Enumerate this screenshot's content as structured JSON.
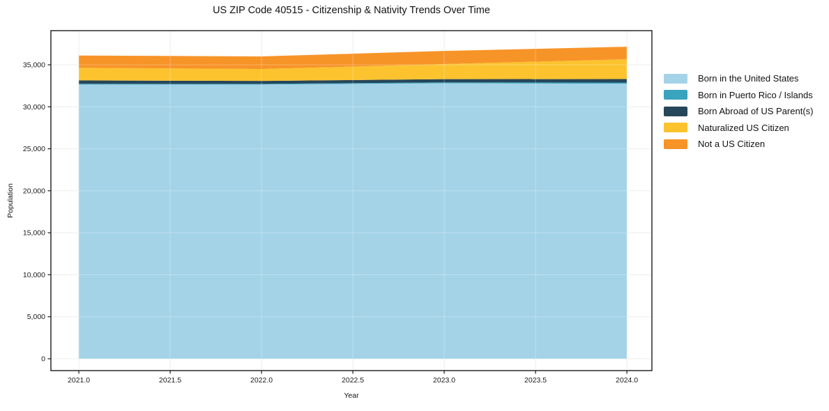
{
  "chart_data": {
    "type": "area",
    "stacked": true,
    "title": "US ZIP Code 40515 - Citizenship & Nativity Trends Over Time",
    "xlabel": "Year",
    "ylabel": "Population",
    "x": [
      2021,
      2022,
      2023,
      2024
    ],
    "series": [
      {
        "name": "Born in the United States",
        "color": "#A4D3E8",
        "values": [
          32650,
          32650,
          32800,
          32750
        ]
      },
      {
        "name": "Born in Puerto Rico / Islands",
        "color": "#3AA3BE",
        "values": [
          90,
          80,
          110,
          130
        ]
      },
      {
        "name": "Born Abroad of US Parent(s)",
        "color": "#26465A",
        "values": [
          400,
          350,
          380,
          420
        ]
      },
      {
        "name": "Naturalized US Citizen",
        "color": "#FCC32F",
        "values": [
          1500,
          1420,
          1790,
          2360
        ]
      },
      {
        "name": "Not a US Citizen",
        "color": "#F79428",
        "values": [
          1460,
          1500,
          1570,
          1490
        ]
      }
    ],
    "totals": [
      36100,
      36000,
      36650,
      37150
    ],
    "xlim": [
      2020.847,
      2024.137
    ],
    "ylim": [
      -1410,
      39064
    ],
    "x_ticks": [
      2021.0,
      2021.5,
      2022.0,
      2022.5,
      2023.0,
      2023.5,
      2024.0
    ],
    "x_tick_labels": [
      "2021.0",
      "2021.5",
      "2022.0",
      "2022.5",
      "2023.0",
      "2023.5",
      "2024.0"
    ],
    "y_ticks": [
      0,
      5000,
      10000,
      15000,
      20000,
      25000,
      30000,
      35000
    ],
    "y_tick_labels": [
      "0",
      "5,000",
      "10,000",
      "15,000",
      "20,000",
      "25,000",
      "30,000",
      "35,000"
    ],
    "grid": true,
    "legend_position": "right",
    "colors": {
      "grid": "#e7e7e7",
      "spine": "#1a1a1a",
      "text": "#1a1a1a"
    }
  }
}
